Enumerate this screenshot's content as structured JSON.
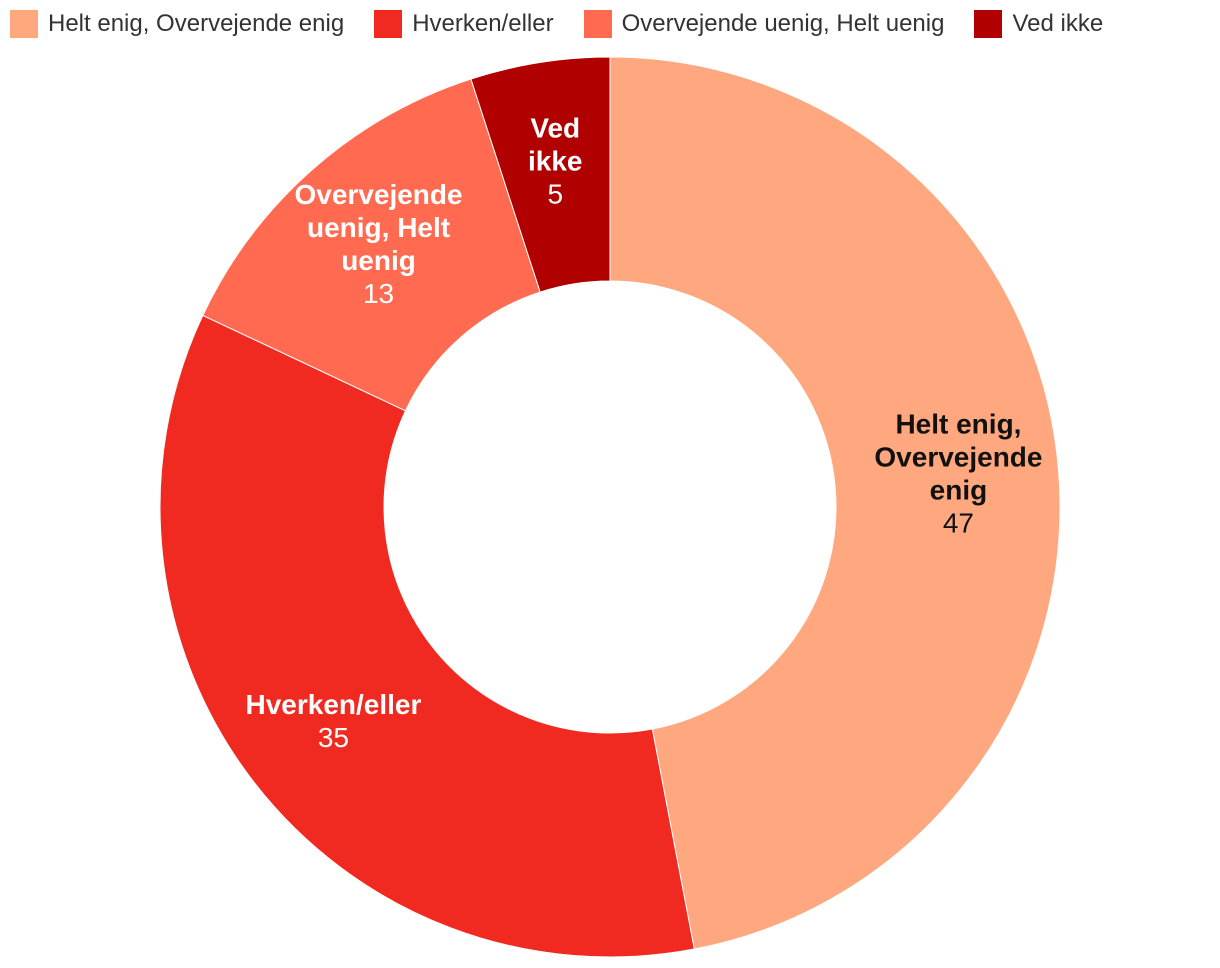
{
  "chart_data": {
    "type": "pie",
    "variant": "donut",
    "categories": [
      "Helt enig, Overvejende enig",
      "Hverken/eller",
      "Overvejende uenig, Helt uenig",
      "Ved ikke"
    ],
    "values": [
      47,
      35,
      13,
      5
    ],
    "colors": [
      "#ffa880",
      "#f02a20",
      "#ff6a50",
      "#b00000"
    ],
    "label_colors": [
      "#111111",
      "#ffffff",
      "#ffffff",
      "#ffffff"
    ],
    "slice_labels": [
      [
        "Helt enig,",
        "Overvejende",
        "enig"
      ],
      [
        "Hverken/eller"
      ],
      [
        "Overvejende",
        "uenig, Helt",
        "uenig"
      ],
      [
        "Ved",
        "ikke"
      ]
    ],
    "legend_position": "top-left"
  }
}
